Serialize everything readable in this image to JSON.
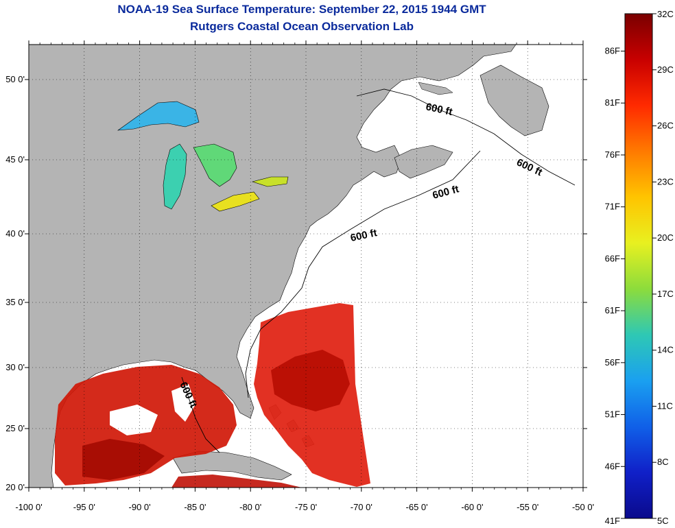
{
  "title": "NOAA-19 Sea Surface Temperature:  September 22, 2015 1944 GMT",
  "subtitle": "Rutgers Coastal Ocean Observation Lab",
  "lon_ticks": [
    "-100 0'",
    "-95 0'",
    "-90 0'",
    "-85 0'",
    "-80 0'",
    "-75 0'",
    "-70 0'",
    "-65 0'",
    "-60 0'",
    "-55 0'",
    "-50 0'"
  ],
  "lat_ticks": [
    "20 0'",
    "25 0'",
    "30 0'",
    "35 0'",
    "40 0'",
    "45 0'",
    "50 0'"
  ],
  "isobath_label": "600 ft",
  "colorbar": {
    "celsius": [
      "32C",
      "29C",
      "26C",
      "23C",
      "20C",
      "17C",
      "14C",
      "11C",
      "8C",
      "5C"
    ],
    "fahrenheit": [
      "86F",
      "81F",
      "76F",
      "71F",
      "66F",
      "61F",
      "56F",
      "51F",
      "46F",
      "41F"
    ],
    "colors": [
      "#7a0000",
      "#c80000",
      "#ff2a00",
      "#ff7a00",
      "#ffc400",
      "#e8f020",
      "#8cdc3c",
      "#2ec8b4",
      "#1aa0f0",
      "#1060e8",
      "#1020c8",
      "#0a0a8c"
    ]
  },
  "colors": {
    "land": "#b4b4b4",
    "ocean_no_data": "#ffffff",
    "title": "#0a2a9c"
  }
}
